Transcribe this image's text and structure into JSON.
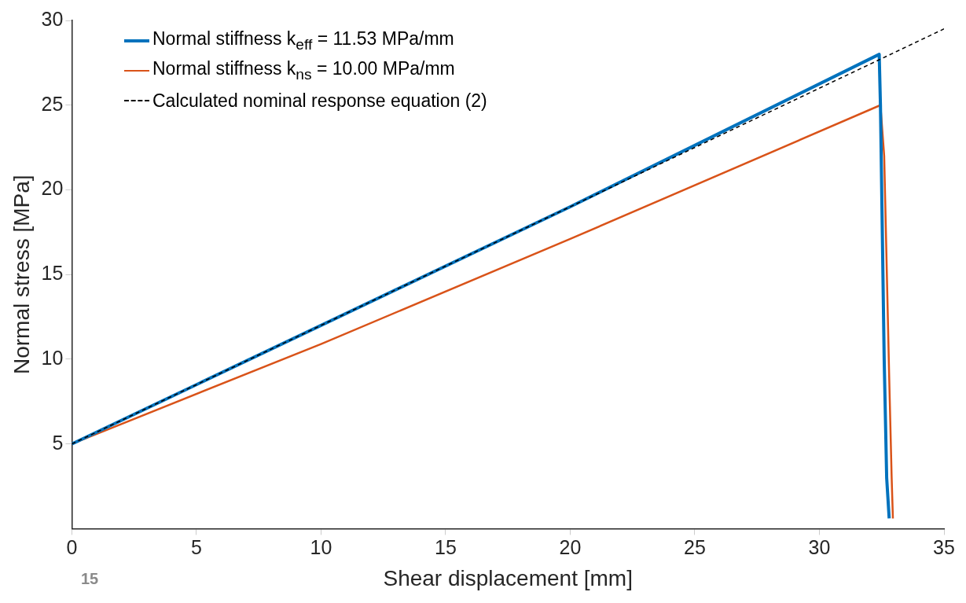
{
  "chart_data": {
    "type": "line",
    "xlabel": "Shear displacement [mm]",
    "ylabel": "Normal stress [MPa]",
    "xlim": [
      0,
      35
    ],
    "xticks": [
      0,
      5,
      10,
      15,
      20,
      25,
      30,
      35
    ],
    "ylim": [
      0,
      30
    ],
    "yticks": [
      5,
      10,
      15,
      20,
      25,
      30
    ],
    "grid": false,
    "legend": "top left",
    "marker": "none",
    "annotations": [
      "15"
    ],
    "series": [
      {
        "name": "Normal stiffness k$_{eff}$ = 11.53 MPa/mm",
        "color": "#0072bd",
        "x": [
          0,
          10,
          20,
          32.4,
          32.45,
          32.6,
          32.7,
          32.8
        ],
        "values": [
          5,
          12,
          19,
          28,
          25,
          10,
          3,
          0.6
        ]
      },
      {
        "name": "Normal stiffness k$_{ns}$ = 10.00 MPa/mm",
        "color": "#d95319",
        "x": [
          0,
          10,
          20,
          32.45,
          32.6,
          32.8,
          32.9,
          32.95
        ],
        "values": [
          5,
          10.9,
          17.1,
          25,
          22,
          9,
          3,
          0.6
        ]
      },
      {
        "name": "Calculated nominal response equation (2)",
        "color": "#000000",
        "line_style": "dashed",
        "x": [
          0,
          35
        ],
        "values": [
          5,
          29.5
        ]
      }
    ]
  }
}
